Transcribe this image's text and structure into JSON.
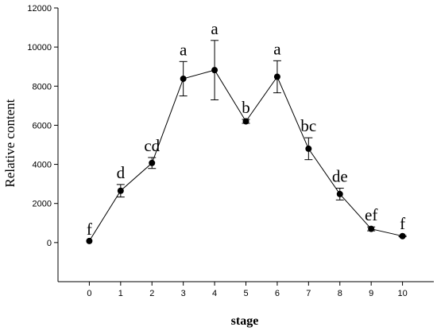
{
  "chart_data": {
    "type": "line",
    "title": "",
    "xlabel": "stage",
    "ylabel": "Relative content",
    "xlim": [
      -1,
      11
    ],
    "ylim": [
      -2000,
      12000
    ],
    "x_ticks": [
      0,
      1,
      2,
      3,
      4,
      5,
      6,
      7,
      8,
      9,
      10
    ],
    "y_ticks": [
      0,
      2000,
      4000,
      6000,
      8000,
      10000,
      12000
    ],
    "y_tick_labels": [
      "0",
      "2000",
      "4000",
      "6000",
      "8000",
      "10000",
      "12000"
    ],
    "grid": false,
    "legend": "none",
    "series": [
      {
        "x": [
          0,
          1,
          2,
          3,
          4,
          5,
          6,
          7,
          8,
          9,
          10
        ],
        "y": [
          80,
          2650,
          4070,
          8380,
          8820,
          6200,
          8480,
          4800,
          2480,
          700,
          330
        ],
        "error": [
          0,
          320,
          280,
          880,
          1520,
          100,
          820,
          560,
          300,
          100,
          30
        ],
        "significance_letters": [
          "f",
          "d",
          "cd",
          "a",
          "a",
          "b",
          "a",
          "bc",
          "de",
          "ef",
          "f"
        ]
      }
    ],
    "colors": {
      "line": "#000000",
      "marker": "#000000",
      "axis": "#000000"
    }
  }
}
